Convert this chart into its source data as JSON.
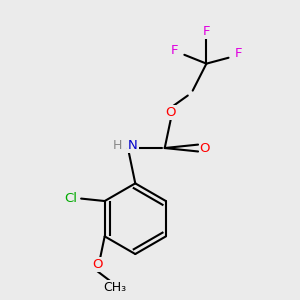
{
  "background_color": "#ebebeb",
  "atom_colors": {
    "F": "#e000e0",
    "O": "#ff0000",
    "N": "#0000cc",
    "Cl": "#00aa00",
    "C": "#000000",
    "H": "#888888"
  },
  "figsize": [
    3.0,
    3.0
  ],
  "dpi": 100,
  "bond_lw": 1.5,
  "font_size": 9.5
}
